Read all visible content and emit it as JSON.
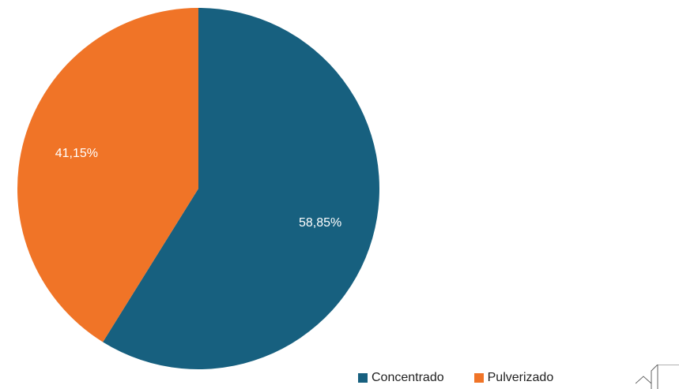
{
  "chart_data": {
    "type": "pie",
    "slices": [
      {
        "label": "Concentrado",
        "value": 58.85,
        "display": "58,85%",
        "color": "#17607f"
      },
      {
        "label": "Pulverizado",
        "value": 41.15,
        "display": "41,15%",
        "color": "#f07427"
      }
    ],
    "start_angle": "12 o'clock",
    "direction": "clockwise",
    "legend_position": "bottom-right"
  },
  "icons": {
    "corner": "house-outline-icon"
  }
}
